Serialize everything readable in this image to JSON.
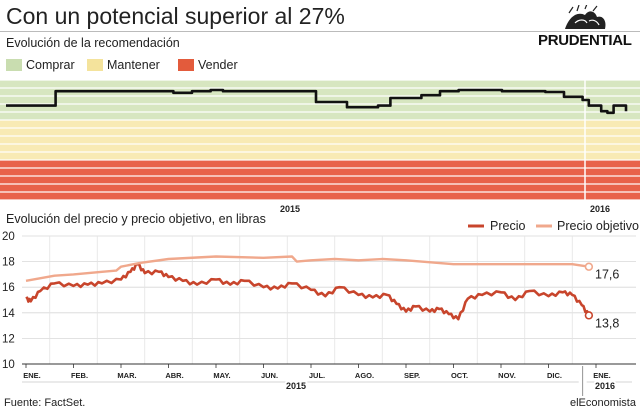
{
  "title": "Con un potencial superior al 27%",
  "brand": {
    "name": "PRUDENTIAL",
    "logo_icon": "rock-of-gibraltar-logo"
  },
  "source": "Fuente: FactSet.",
  "publisher": "elEconomista",
  "colors": {
    "comprar": "#c9ddb0",
    "comprar_band": "#d7e6c0",
    "mantener": "#f4e39c",
    "mantener_band": "#f8eab4",
    "vender": "#e35b3c",
    "vender_band": "#e8624a",
    "precio": "#c8452c",
    "precio_objetivo": "#f0a88c",
    "recommendation_line": "#111111"
  },
  "chart_data": [
    {
      "type": "line",
      "title": "Evolución de la recomendación",
      "legend": [
        "Comprar",
        "Mantener",
        "Vender"
      ],
      "legend_position": "top-left",
      "x_labels": [
        "2015",
        "2016"
      ],
      "note": "line stays in Comprar zone throughout the period",
      "series": [
        {
          "name": "Recomendación",
          "x": [
            0,
            0.07,
            0.08,
            0.25,
            0.27,
            0.3,
            0.33,
            0.35,
            0.45,
            0.5,
            0.55,
            0.6,
            0.62,
            0.67,
            0.7,
            0.73,
            0.8,
            0.87,
            0.9,
            0.93,
            0.94,
            0.96,
            0.97,
            0.98,
            1.0
          ],
          "values": [
            0.36,
            0.36,
            0.72,
            0.72,
            0.68,
            0.72,
            0.75,
            0.72,
            0.72,
            0.45,
            0.32,
            0.36,
            0.55,
            0.62,
            0.72,
            0.75,
            0.72,
            0.7,
            0.58,
            0.5,
            0.36,
            0.22,
            0.18,
            0.36,
            0.22
          ]
        }
      ]
    },
    {
      "type": "line",
      "title": "Evolución del precio y precio objetivo, en libras",
      "ylim": [
        10,
        20
      ],
      "yticks": [
        10,
        12,
        14,
        16,
        18,
        20
      ],
      "categories": [
        "ENE.",
        "FEB.",
        "MAR.",
        "ABR.",
        "MAY.",
        "JUN.",
        "JUL.",
        "AGO.",
        "SEP.",
        "OCT.",
        "NOV.",
        "DIC.",
        "ENE."
      ],
      "year_labels": [
        "2015",
        "2016"
      ],
      "grid": true,
      "legend_position": "top-right",
      "series": [
        {
          "name": "Precio",
          "x": [
            0.0,
            0.1,
            0.3,
            0.6,
            1.0,
            1.3,
            1.6,
            2.0,
            2.2,
            2.35,
            2.5,
            2.8,
            3.0,
            3.3,
            3.6,
            4.0,
            4.3,
            4.6,
            5.0,
            5.3,
            5.6,
            6.0,
            6.3,
            6.6,
            7.0,
            7.3,
            7.6,
            7.8,
            8.0,
            8.2,
            8.5,
            8.7,
            8.9,
            9.1,
            9.3,
            9.6,
            10.0,
            10.3,
            10.6,
            11.0,
            11.3,
            11.5,
            11.7,
            11.85
          ],
          "values": [
            15.1,
            14.9,
            15.7,
            16.3,
            16.1,
            16.2,
            16.3,
            16.6,
            17.2,
            17.8,
            17.1,
            17.2,
            16.8,
            16.5,
            16.2,
            16.6,
            16.2,
            16.5,
            16.0,
            15.9,
            16.3,
            15.8,
            15.3,
            16.0,
            15.4,
            15.2,
            15.4,
            14.7,
            14.1,
            14.5,
            14.1,
            14.3,
            13.9,
            13.5,
            15.1,
            15.4,
            15.6,
            15.0,
            15.7,
            15.3,
            15.6,
            15.4,
            14.6,
            13.8
          ]
        },
        {
          "name": "Precio objetivo",
          "x": [
            0.0,
            0.6,
            1.0,
            1.6,
            1.9,
            2.0,
            2.4,
            3.0,
            4.0,
            5.0,
            5.6,
            5.7,
            6.0,
            6.5,
            7.0,
            7.5,
            8.0,
            9.0,
            10.0,
            11.0,
            11.5,
            11.85
          ],
          "values": [
            16.5,
            16.9,
            17.0,
            17.2,
            17.3,
            17.6,
            17.9,
            18.2,
            18.4,
            18.3,
            18.4,
            18.0,
            18.1,
            18.2,
            18.1,
            18.2,
            18.1,
            17.8,
            17.8,
            17.8,
            17.8,
            17.6
          ]
        }
      ],
      "end_labels": {
        "precio_objetivo": "17,6",
        "precio": "13,8"
      }
    }
  ]
}
